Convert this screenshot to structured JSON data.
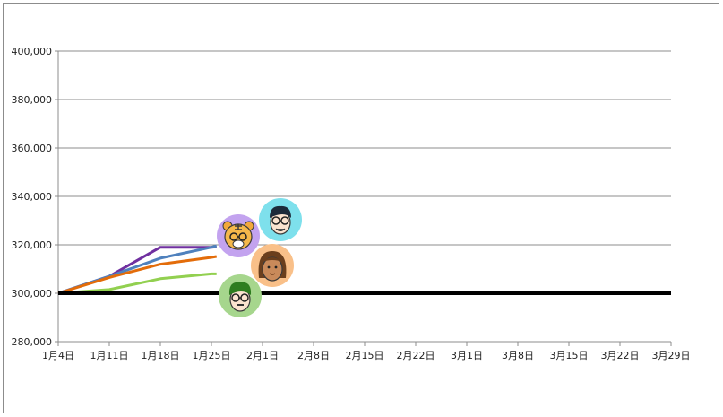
{
  "chart_data": {
    "type": "line",
    "title": "",
    "xlabel": "",
    "ylabel": "",
    "ylim": [
      280000,
      400000
    ],
    "yticks": [
      280000,
      300000,
      320000,
      340000,
      360000,
      380000,
      400000
    ],
    "ytick_labels": [
      "280,000",
      "300,000",
      "320,000",
      "340,000",
      "360,000",
      "380,000",
      "400,000"
    ],
    "categories": [
      "1月4日",
      "1月11日",
      "1月18日",
      "1月25日",
      "2月1日",
      "2月8日",
      "2月15日",
      "2月22日",
      "3月1日",
      "3月8日",
      "3月15日",
      "3月22日",
      "3月29日"
    ],
    "grid": true,
    "baseline": {
      "value": 300000,
      "color": "#000000"
    },
    "series": [
      {
        "color": "#7030a0",
        "x": [
          0,
          1,
          2,
          3,
          3.1
        ],
        "values": [
          300000,
          307000,
          319000,
          319000,
          319200
        ],
        "avatar": "tiger-avatar-icon",
        "avatar_bg": "#c3a3ef"
      },
      {
        "color": "#4f81bd",
        "x": [
          0,
          1,
          2,
          3,
          3.1
        ],
        "values": [
          300000,
          307000,
          314500,
          319000,
          319600
        ],
        "avatar": "man-glasses-avatar-icon",
        "avatar_bg": "#7ee0ec"
      },
      {
        "color": "#e36c0a",
        "x": [
          0,
          1,
          2,
          3,
          3.1
        ],
        "values": [
          300000,
          306500,
          312000,
          314800,
          315200
        ],
        "avatar": "long-hair-avatar-icon",
        "avatar_bg": "#f9c089"
      },
      {
        "color": "#92d050",
        "x": [
          0,
          1,
          2,
          3,
          3.1
        ],
        "values": [
          300000,
          301500,
          306000,
          308000,
          308000
        ],
        "avatar": "green-hair-avatar-icon",
        "avatar_bg": "#a6d68d"
      }
    ]
  }
}
